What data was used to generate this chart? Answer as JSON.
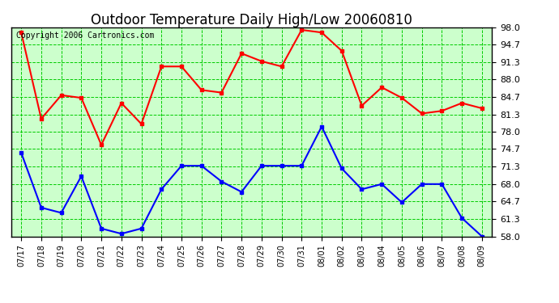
{
  "title": "Outdoor Temperature Daily High/Low 20060810",
  "copyright": "Copyright 2006 Cartronics.com",
  "dates": [
    "07/17",
    "07/18",
    "07/19",
    "07/20",
    "07/21",
    "07/22",
    "07/23",
    "07/24",
    "07/25",
    "07/26",
    "07/27",
    "07/28",
    "07/29",
    "07/30",
    "07/31",
    "08/01",
    "08/02",
    "08/03",
    "08/04",
    "08/05",
    "08/06",
    "08/07",
    "08/08",
    "08/09"
  ],
  "high": [
    97.0,
    80.5,
    85.0,
    84.5,
    75.5,
    83.5,
    79.5,
    90.5,
    90.5,
    86.0,
    85.5,
    93.0,
    91.5,
    90.5,
    97.5,
    97.0,
    93.5,
    83.0,
    86.5,
    84.5,
    81.5,
    82.0,
    83.5,
    82.5
  ],
  "low": [
    74.0,
    63.5,
    62.5,
    69.5,
    59.5,
    58.5,
    59.5,
    67.0,
    71.5,
    71.5,
    68.5,
    66.5,
    71.5,
    71.5,
    71.5,
    79.0,
    71.0,
    67.0,
    68.0,
    64.5,
    68.0,
    68.0,
    61.5,
    58.0
  ],
  "ylim": [
    58.0,
    98.0
  ],
  "yticks": [
    58.0,
    61.3,
    64.7,
    68.0,
    71.3,
    74.7,
    78.0,
    81.3,
    84.7,
    88.0,
    91.3,
    94.7,
    98.0
  ],
  "high_color": "#ff0000",
  "low_color": "#0000ff",
  "bg_color": "#ffffff",
  "plot_bg_color": "#ccffcc",
  "grid_color": "#00cc00",
  "title_fontsize": 12,
  "copyright_fontsize": 7,
  "marker": "s",
  "markersize": 3,
  "linewidth": 1.5
}
